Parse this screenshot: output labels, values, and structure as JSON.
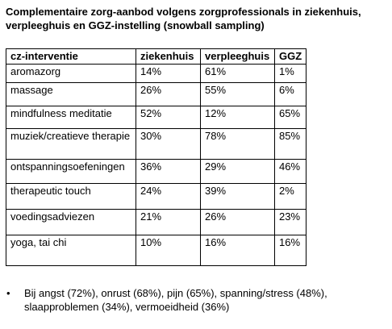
{
  "header": {
    "title_lines": [
      "Complementaire zorg-aanbod volgens zorgprofessionals in ziekenhuis,",
      "verpleeghuis en GGZ-instelling (snowball sampling)"
    ]
  },
  "table": {
    "columns": [
      "cz-interventie",
      "ziekenhuis",
      "verpleeghuis",
      "GGZ"
    ],
    "rows": [
      [
        "aromazorg",
        "14%",
        "61%",
        "1%"
      ],
      [
        "massage",
        "26%",
        "55%",
        "6%"
      ],
      [
        "mindfulness meditatie",
        "52%",
        "12%",
        "65%"
      ],
      [
        "muziek/creatieve therapie",
        "30%",
        "78%",
        "85%"
      ],
      [
        "ontspanningsoefeningen",
        "36%",
        "29%",
        "46%"
      ],
      [
        "therapeutic touch",
        "24%",
        "39%",
        "2%"
      ],
      [
        "voedingsadviezen",
        "21%",
        "26%",
        "23%"
      ],
      [
        "yoga, tai chi",
        "10%",
        "16%",
        "16%"
      ]
    ]
  },
  "notes": [
    "Bij angst (72%), onrust (68%), pijn (65%), spanning/stress (48%), slaapproblemen (34%), vermoeidheid (36%)"
  ]
}
